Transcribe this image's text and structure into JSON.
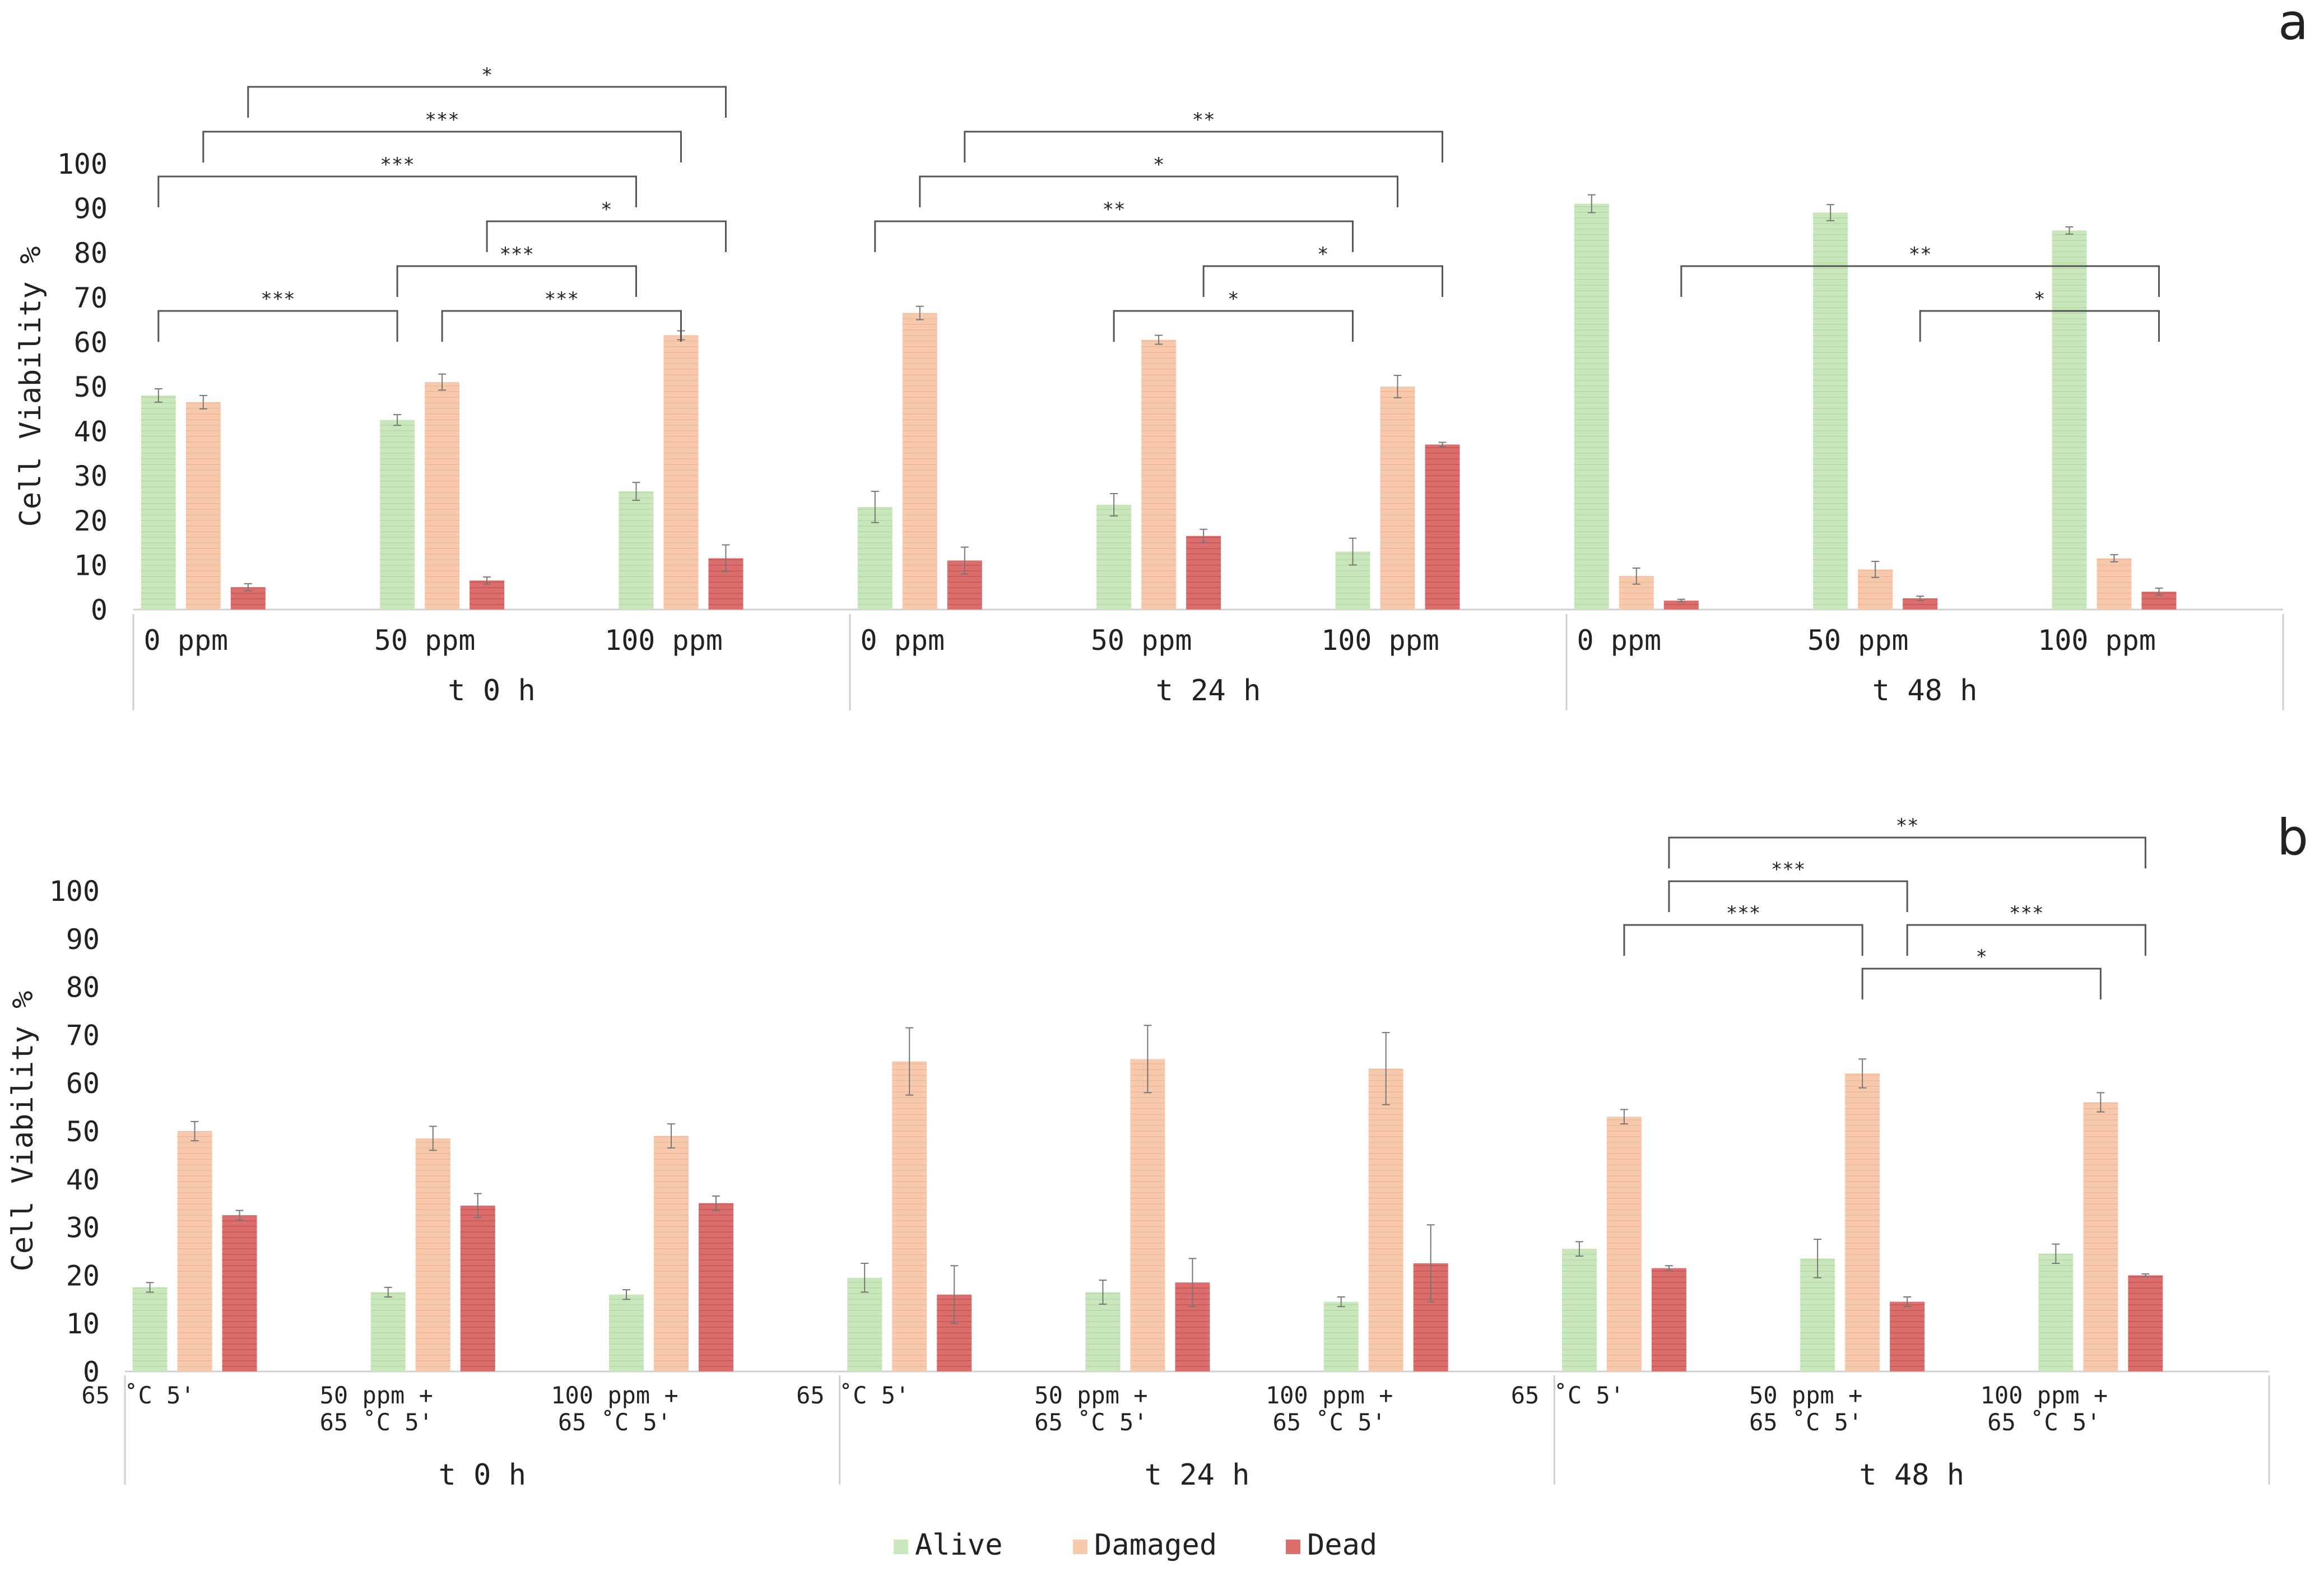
{
  "colors": {
    "alive": "#c9e6bd",
    "damaged": "#f7c9ad",
    "dead": "#dc6e6e",
    "axis": "#d0d0d0",
    "bracket": "#555555",
    "text": "#222222"
  },
  "legend": [
    {
      "key": "alive",
      "label": "Alive"
    },
    {
      "key": "damaged",
      "label": "Damaged"
    },
    {
      "key": "dead",
      "label": "Dead"
    }
  ],
  "chart_data": [
    {
      "type": "bar",
      "panel_label": "a",
      "ylabel": "Cell Viability %",
      "ylim": [
        0,
        100
      ],
      "yticks": [
        "0",
        "10",
        "20",
        "30",
        "40",
        "50",
        "60",
        "70",
        "80",
        "90",
        "100"
      ],
      "series": [
        "Alive",
        "Damaged",
        "Dead"
      ],
      "groups": [
        {
          "label": "t 0 h",
          "categories": [
            {
              "label": [
                "0 ppm"
              ],
              "values": [
                48,
                46.5,
                5
              ],
              "errors": [
                1.5,
                1.5,
                0.8
              ]
            },
            {
              "label": [
                "50 ppm"
              ],
              "values": [
                42.5,
                51,
                6.5
              ],
              "errors": [
                1.2,
                1.8,
                0.8
              ]
            },
            {
              "label": [
                "100 ppm"
              ],
              "values": [
                26.5,
                61.5,
                11.5
              ],
              "errors": [
                2,
                1,
                3
              ]
            }
          ]
        },
        {
          "label": "t 24 h",
          "categories": [
            {
              "label": [
                "0 ppm"
              ],
              "values": [
                23,
                66.5,
                11
              ],
              "errors": [
                3.5,
                1.5,
                3
              ]
            },
            {
              "label": [
                "50 ppm"
              ],
              "values": [
                23.5,
                60.5,
                16.5
              ],
              "errors": [
                2.5,
                1,
                1.5
              ]
            },
            {
              "label": [
                "100 ppm"
              ],
              "values": [
                13,
                50,
                37
              ],
              "errors": [
                3,
                2.5,
                0.5
              ]
            }
          ]
        },
        {
          "label": "t 48 h",
          "categories": [
            {
              "label": [
                "0 ppm"
              ],
              "values": [
                91,
                7.5,
                2
              ],
              "errors": [
                2,
                1.8,
                0.3
              ]
            },
            {
              "label": [
                "50 ppm"
              ],
              "values": [
                89,
                9,
                2.5
              ],
              "errors": [
                1.8,
                1.8,
                0.5
              ]
            },
            {
              "label": [
                "100 ppm"
              ],
              "values": [
                85,
                11.5,
                4
              ],
              "errors": [
                0.8,
                0.8,
                0.8
              ]
            }
          ]
        }
      ],
      "significance": [
        {
          "from": [
            0,
            0,
            0
          ],
          "to": [
            0,
            2,
            0
          ],
          "label": "***"
        },
        {
          "from": [
            0,
            0,
            0
          ],
          "to": [
            0,
            1,
            0
          ],
          "label": "***"
        },
        {
          "from": [
            0,
            1,
            0
          ],
          "to": [
            0,
            2,
            0
          ],
          "label": "***"
        },
        {
          "from": [
            0,
            1,
            1
          ],
          "to": [
            0,
            2,
            1
          ],
          "label": "***"
        },
        {
          "from": [
            0,
            0,
            1
          ],
          "to": [
            0,
            2,
            1
          ],
          "label": "***"
        },
        {
          "from": [
            0,
            1,
            2
          ],
          "to": [
            0,
            2,
            2
          ],
          "label": "*"
        },
        {
          "from": [
            0,
            0,
            2
          ],
          "to": [
            0,
            2,
            2
          ],
          "label": "*"
        },
        {
          "from": [
            1,
            0,
            0
          ],
          "to": [
            1,
            2,
            0
          ],
          "label": "**"
        },
        {
          "from": [
            1,
            1,
            0
          ],
          "to": [
            1,
            2,
            0
          ],
          "label": "*"
        },
        {
          "from": [
            1,
            0,
            1
          ],
          "to": [
            1,
            2,
            1
          ],
          "label": "*"
        },
        {
          "from": [
            1,
            0,
            2
          ],
          "to": [
            1,
            2,
            2
          ],
          "label": "**"
        },
        {
          "from": [
            1,
            1,
            2
          ],
          "to": [
            1,
            2,
            2
          ],
          "label": "*"
        },
        {
          "from": [
            2,
            0,
            2
          ],
          "to": [
            2,
            2,
            2
          ],
          "label": "**"
        },
        {
          "from": [
            2,
            1,
            2
          ],
          "to": [
            2,
            2,
            2
          ],
          "label": "*"
        }
      ]
    },
    {
      "type": "bar",
      "panel_label": "b",
      "ylabel": "Cell Viability %",
      "ylim": [
        0,
        100
      ],
      "yticks": [
        "0",
        "10",
        "20",
        "30",
        "40",
        "50",
        "60",
        "70",
        "80",
        "90",
        "100"
      ],
      "series": [
        "Alive",
        "Damaged",
        "Dead"
      ],
      "groups": [
        {
          "label": "t 0 h",
          "categories": [
            {
              "label": [
                "65 ˚C 5'"
              ],
              "values": [
                17.5,
                50,
                32.5
              ],
              "errors": [
                1,
                2,
                1
              ]
            },
            {
              "label": [
                "50 ppm +",
                "65 ˚C 5'"
              ],
              "values": [
                16.5,
                48.5,
                34.5
              ],
              "errors": [
                1,
                2.5,
                2.5
              ]
            },
            {
              "label": [
                "100 ppm +",
                "65 ˚C 5'"
              ],
              "values": [
                16,
                49,
                35
              ],
              "errors": [
                1,
                2.5,
                1.5
              ]
            }
          ]
        },
        {
          "label": "t 24 h",
          "categories": [
            {
              "label": [
                "65 ˚C 5'"
              ],
              "values": [
                19.5,
                64.5,
                16
              ],
              "errors": [
                3,
                7,
                6
              ]
            },
            {
              "label": [
                "50 ppm +",
                "65 ˚C 5'"
              ],
              "values": [
                16.5,
                65,
                18.5
              ],
              "errors": [
                2.5,
                7,
                5
              ]
            },
            {
              "label": [
                "100 ppm +",
                "65 ˚C 5'"
              ],
              "values": [
                14.5,
                63,
                22.5
              ],
              "errors": [
                1,
                7.5,
                8
              ]
            }
          ]
        },
        {
          "label": "t 48 h",
          "categories": [
            {
              "label": [
                "65 ˚C 5'"
              ],
              "values": [
                25.5,
                53,
                21.5
              ],
              "errors": [
                1.5,
                1.5,
                0.5
              ]
            },
            {
              "label": [
                "50 ppm +",
                "65 ˚C 5'"
              ],
              "values": [
                23.5,
                62,
                14.5
              ],
              "errors": [
                4,
                3,
                1
              ]
            },
            {
              "label": [
                "100 ppm +",
                "65 ˚C 5'"
              ],
              "values": [
                24.5,
                56,
                20
              ],
              "errors": [
                2,
                2,
                0.3
              ]
            }
          ]
        }
      ],
      "significance": [
        {
          "from": [
            2,
            1,
            1
          ],
          "to": [
            2,
            2,
            1
          ],
          "label": "*"
        },
        {
          "from": [
            2,
            0,
            1
          ],
          "to": [
            2,
            1,
            1
          ],
          "label": "***"
        },
        {
          "from": [
            2,
            0,
            2
          ],
          "to": [
            2,
            2,
            2
          ],
          "label": "**"
        },
        {
          "from": [
            2,
            0,
            2
          ],
          "to": [
            2,
            1,
            2
          ],
          "label": "***"
        },
        {
          "from": [
            2,
            1,
            2
          ],
          "to": [
            2,
            2,
            2
          ],
          "label": "***"
        }
      ]
    }
  ]
}
